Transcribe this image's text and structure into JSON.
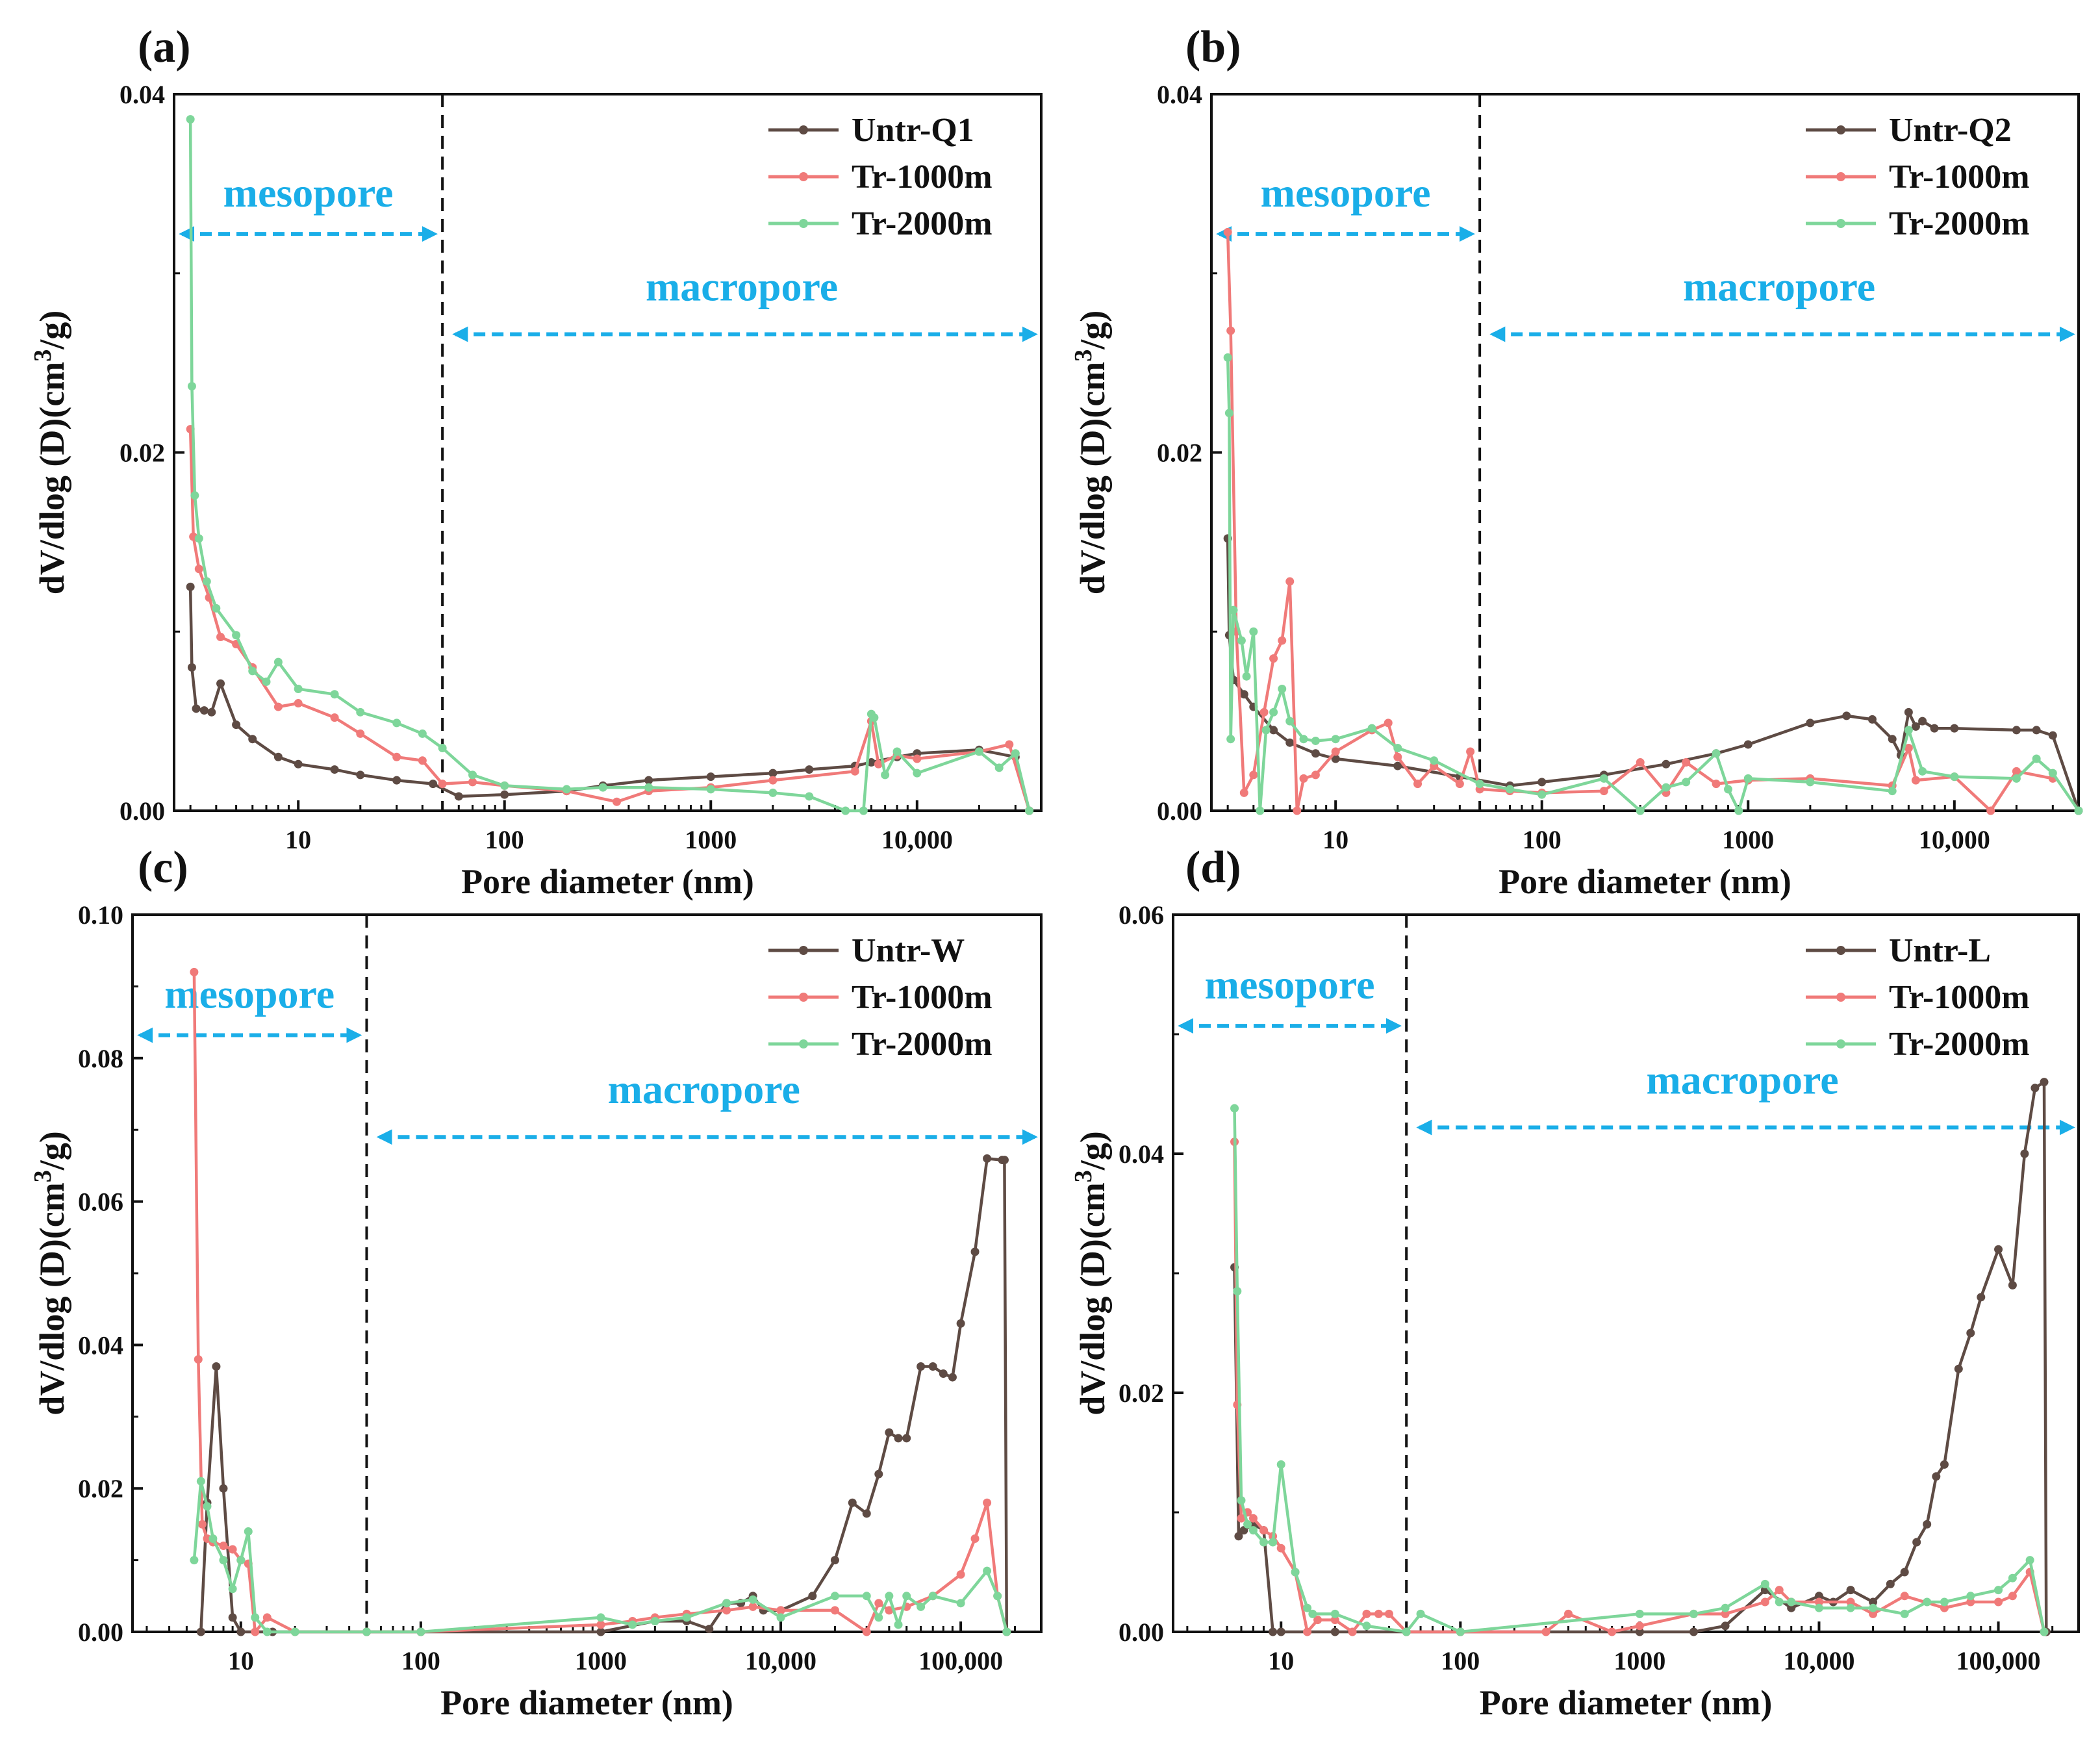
{
  "figure": {
    "colors": {
      "untreated": "#5e4b44",
      "tr1000": "#f07a79",
      "tr2000": "#7ed69a",
      "region": "#1aaee8",
      "axis": "#111111"
    }
  },
  "chart_data": [
    {
      "panel": "(a)",
      "type": "line",
      "xscale": "log",
      "xlim": [
        2.5,
        40000
      ],
      "ylim": [
        0,
        0.04
      ],
      "yticks": [
        "0.00",
        "0.02",
        "0.04"
      ],
      "xticks": [
        "10",
        "100",
        "1000",
        "10,000"
      ],
      "xlabel": "Pore diameter (nm)",
      "ylabel": "dV/dlog (D)(cm3/g)",
      "ylabel_main": "dV/dlog (D)(cm",
      "ylabel_sup": "3",
      "ylabel_tail": "/g)",
      "boundary_nm": 50,
      "region_labels": {
        "mesopore": "mesopore",
        "macropore": "macropore"
      },
      "region_y": {
        "mesopore": 0.0322,
        "macropore": 0.0266
      },
      "legend": [
        "Untr-Q1",
        "Tr-1000m",
        "Tr-2000m"
      ],
      "series": [
        {
          "name": "Untr-Q1",
          "color": "#5e4b44",
          "x": [
            3,
            3.05,
            3.2,
            3.5,
            3.8,
            4.2,
            5,
            6,
            8,
            10,
            15,
            20,
            30,
            45,
            60,
            100,
            200,
            300,
            500,
            1000,
            2000,
            3000,
            5000,
            6000,
            8000,
            10000,
            20000,
            30000,
            35000
          ],
          "y": [
            0.0125,
            0.008,
            0.0057,
            0.0056,
            0.0055,
            0.0071,
            0.0048,
            0.004,
            0.003,
            0.0026,
            0.0023,
            0.002,
            0.0017,
            0.0015,
            0.0008,
            0.0009,
            0.0011,
            0.0014,
            0.0017,
            0.0019,
            0.0021,
            0.0023,
            0.0025,
            0.0027,
            0.003,
            0.0032,
            0.0034,
            0.003,
            0
          ]
        },
        {
          "name": "Tr-1000m",
          "color": "#f07a79",
          "x": [
            3,
            3.1,
            3.3,
            3.7,
            4.2,
            5,
            6,
            8,
            10,
            15,
            20,
            30,
            40,
            50,
            70,
            100,
            200,
            350,
            500,
            1000,
            2000,
            5000,
            6000,
            6500,
            8000,
            10000,
            20000,
            28000,
            35000
          ],
          "y": [
            0.0213,
            0.0153,
            0.0135,
            0.0119,
            0.0097,
            0.0093,
            0.008,
            0.0058,
            0.006,
            0.0052,
            0.0043,
            0.003,
            0.0028,
            0.0015,
            0.0016,
            0.0014,
            0.0011,
            0.0005,
            0.0011,
            0.0013,
            0.0017,
            0.0022,
            0.005,
            0.0026,
            0.0031,
            0.0029,
            0.0033,
            0.0037,
            0
          ]
        },
        {
          "name": "Tr-2000m",
          "color": "#7ed69a",
          "x": [
            3,
            3.05,
            3.15,
            3.3,
            3.6,
            4,
            5,
            6,
            7,
            8,
            10,
            15,
            20,
            30,
            40,
            50,
            70,
            100,
            200,
            300,
            500,
            1000,
            2000,
            3000,
            4500,
            5500,
            6000,
            6200,
            7000,
            8000,
            10000,
            20000,
            25000,
            30000,
            35000
          ],
          "y": [
            0.0386,
            0.0237,
            0.0176,
            0.0152,
            0.0128,
            0.0113,
            0.0098,
            0.0078,
            0.0072,
            0.0083,
            0.0068,
            0.0065,
            0.0055,
            0.0049,
            0.0043,
            0.0035,
            0.002,
            0.0014,
            0.0012,
            0.0013,
            0.0013,
            0.0012,
            0.001,
            0.0008,
            0,
            0,
            0.0054,
            0.0052,
            0.002,
            0.0033,
            0.0021,
            0.0033,
            0.0024,
            0.0032,
            0
          ]
        }
      ]
    },
    {
      "panel": "(b)",
      "type": "line",
      "xscale": "log",
      "xlim": [
        2.5,
        40000
      ],
      "ylim": [
        0,
        0.04
      ],
      "yticks": [
        "0.00",
        "0.02",
        "0.04"
      ],
      "xticks": [
        "10",
        "100",
        "1000",
        "10,000"
      ],
      "xlabel": "Pore diameter (nm)",
      "ylabel": "dV/dlog (D)(cm3/g)",
      "ylabel_main": "dV/dlog (D)(cm",
      "ylabel_sup": "3",
      "ylabel_tail": "/g)",
      "boundary_nm": 50,
      "region_labels": {
        "mesopore": "mesopore",
        "macropore": "macropore"
      },
      "region_y": {
        "mesopore": 0.0322,
        "macropore": 0.0266
      },
      "legend": [
        "Untr-Q2",
        "Tr-1000m",
        "Tr-2000m"
      ],
      "series": [
        {
          "name": "Untr-Q2",
          "color": "#5e4b44",
          "x": [
            3,
            3.05,
            3.2,
            3.6,
            4,
            5,
            6,
            8,
            10,
            20,
            40,
            70,
            100,
            200,
            400,
            700,
            1000,
            2000,
            3000,
            4000,
            5000,
            5500,
            6000,
            6500,
            7000,
            8000,
            10000,
            20000,
            25000,
            30000,
            40000
          ],
          "y": [
            0.0152,
            0.0098,
            0.0073,
            0.0065,
            0.0058,
            0.0045,
            0.0038,
            0.0032,
            0.0029,
            0.0025,
            0.0019,
            0.0014,
            0.0016,
            0.002,
            0.0026,
            0.0032,
            0.0037,
            0.0049,
            0.0053,
            0.0051,
            0.004,
            0.0031,
            0.0055,
            0.0047,
            0.005,
            0.0046,
            0.0046,
            0.0045,
            0.0045,
            0.0042,
            0
          ]
        },
        {
          "name": "Tr-1000m",
          "color": "#f07a79",
          "x": [
            3,
            3.1,
            3.3,
            3.6,
            4,
            4.5,
            5,
            5.5,
            6,
            6.5,
            7,
            8,
            10,
            15,
            18,
            20,
            25,
            30,
            40,
            45,
            50,
            70,
            100,
            200,
            300,
            400,
            500,
            700,
            1000,
            2000,
            5000,
            6000,
            6500,
            10000,
            15000,
            20000,
            30000
          ],
          "y": [
            0.0323,
            0.0268,
            0.01,
            0.001,
            0.002,
            0.0055,
            0.0085,
            0.0095,
            0.0128,
            0,
            0.0018,
            0.002,
            0.0033,
            0.0045,
            0.0049,
            0.003,
            0.0015,
            0.0025,
            0.0015,
            0.0033,
            0.0012,
            0.0011,
            0.001,
            0.0011,
            0.0027,
            0.001,
            0.0027,
            0.0015,
            0.0017,
            0.0018,
            0.0014,
            0.0035,
            0.0017,
            0.0019,
            0,
            0.0022,
            0.0018
          ]
        },
        {
          "name": "Tr-2000m",
          "color": "#7ed69a",
          "x": [
            3,
            3.05,
            3.1,
            3.2,
            3.5,
            3.7,
            4,
            4.3,
            4.6,
            5,
            5.5,
            6,
            7,
            8,
            10,
            15,
            20,
            30,
            50,
            70,
            100,
            200,
            300,
            400,
            500,
            700,
            800,
            900,
            1000,
            2000,
            5000,
            6000,
            7000,
            10000,
            20000,
            25000,
            30000,
            40000
          ],
          "y": [
            0.0253,
            0.0222,
            0.004,
            0.0112,
            0.0095,
            0.0075,
            0.01,
            0,
            0.0045,
            0.0055,
            0.0068,
            0.005,
            0.004,
            0.0039,
            0.004,
            0.0046,
            0.0035,
            0.0028,
            0.0015,
            0.0012,
            0.0009,
            0.0018,
            0,
            0.0013,
            0.0016,
            0.0032,
            0.0012,
            0,
            0.0018,
            0.0016,
            0.0011,
            0.0045,
            0.0022,
            0.0019,
            0.0018,
            0.0029,
            0.0021,
            0
          ]
        }
      ]
    },
    {
      "panel": "(c)",
      "type": "line",
      "xscale": "log",
      "xlim": [
        2.5,
        280000
      ],
      "ylim": [
        0,
        0.1
      ],
      "yticks": [
        "0.00",
        "0.02",
        "0.04",
        "0.06",
        "0.08",
        "0.10"
      ],
      "xticks": [
        "10",
        "100",
        "1000",
        "10,000",
        "100,000"
      ],
      "xlabel": "Pore diameter (nm)",
      "ylabel": "dV/dlog (D)(cm3/g)",
      "ylabel_main": "dV/dlog (D)(cm",
      "ylabel_sup": "3",
      "ylabel_tail": "/g)",
      "boundary_nm": 50,
      "region_labels": {
        "mesopore": "mesopore",
        "macropore": "macropore"
      },
      "region_y": {
        "mesopore": 0.0832,
        "macropore": 0.069
      },
      "legend": [
        "Untr-W",
        "Tr-1000m",
        "Tr-2000m"
      ],
      "series": [
        {
          "name": "Untr-W",
          "color": "#5e4b44",
          "x": [
            6,
            6.5,
            7.3,
            8,
            9,
            10,
            15,
            50,
            100,
            1000,
            2000,
            3000,
            4000,
            5000,
            6000,
            7000,
            8000,
            10000,
            15000,
            20000,
            25000,
            30000,
            35000,
            40000,
            45000,
            50000,
            60000,
            70000,
            80000,
            90000,
            100000,
            120000,
            140000,
            170000,
            175000,
            180000
          ],
          "y": [
            0,
            0.018,
            0.037,
            0.02,
            0.002,
            0,
            0,
            0,
            0,
            0,
            0.0015,
            0.0015,
            0.0004,
            0.004,
            0.004,
            0.005,
            0.003,
            0.003,
            0.005,
            0.01,
            0.018,
            0.0165,
            0.022,
            0.0278,
            0.027,
            0.027,
            0.037,
            0.037,
            0.036,
            0.0355,
            0.043,
            0.053,
            0.066,
            0.0658,
            0.0658,
            0
          ]
        },
        {
          "name": "Tr-1000m",
          "color": "#f07a79",
          "x": [
            5.5,
            5.8,
            6.1,
            6.5,
            7,
            8,
            9,
            10,
            11,
            12,
            14,
            20,
            50,
            100,
            1000,
            1500,
            2000,
            3000,
            5000,
            7000,
            10000,
            20000,
            30000,
            35000,
            40000,
            50000,
            70000,
            100000,
            120000,
            140000,
            160000,
            180000
          ],
          "y": [
            0.092,
            0.038,
            0.015,
            0.013,
            0.0125,
            0.012,
            0.0115,
            0.01,
            0.0095,
            0,
            0.002,
            0,
            0,
            0,
            0.001,
            0.0015,
            0.002,
            0.0025,
            0.003,
            0.0035,
            0.003,
            0.003,
            0,
            0.004,
            0.003,
            0.0035,
            0.005,
            0.008,
            0.013,
            0.018,
            0.005,
            0
          ]
        },
        {
          "name": "Tr-2000m",
          "color": "#7ed69a",
          "x": [
            5.5,
            6,
            6.5,
            7,
            8,
            9,
            10,
            11,
            12,
            14,
            20,
            50,
            100,
            1000,
            1500,
            2000,
            3000,
            5000,
            7000,
            10000,
            20000,
            30000,
            35000,
            40000,
            45000,
            50000,
            60000,
            70000,
            100000,
            140000,
            160000,
            180000
          ],
          "y": [
            0.01,
            0.021,
            0.0175,
            0.013,
            0.01,
            0.006,
            0.01,
            0.014,
            0.002,
            0,
            0,
            0,
            0,
            0.002,
            0.001,
            0.0015,
            0.002,
            0.004,
            0.0045,
            0.002,
            0.005,
            0.005,
            0.002,
            0.005,
            0.001,
            0.005,
            0.0035,
            0.005,
            0.004,
            0.0085,
            0.005,
            0
          ]
        }
      ]
    },
    {
      "panel": "(d)",
      "type": "line",
      "xscale": "log",
      "xlim": [
        2.5,
        280000
      ],
      "ylim": [
        0,
        0.06
      ],
      "yticks": [
        "0.00",
        "0.02",
        "0.04",
        "0.06"
      ],
      "xticks": [
        "10",
        "100",
        "1000",
        "10,000",
        "100,000"
      ],
      "xlabel": "Pore diameter (nm)",
      "ylabel": "dV/dlog (D)(cm3/g)",
      "ylabel_main": "dV/dlog (D)(cm",
      "ylabel_sup": "3",
      "ylabel_tail": "/g)",
      "boundary_nm": 50,
      "region_labels": {
        "mesopore": "mesopore",
        "macropore": "macropore"
      },
      "region_y": {
        "mesopore": 0.0507,
        "macropore": 0.0422
      },
      "legend": [
        "Untr-L",
        "Tr-1000m",
        "Tr-2000m"
      ],
      "series": [
        {
          "name": "Untr-L",
          "color": "#5e4b44",
          "x": [
            5.5,
            5.8,
            6.2,
            7,
            8,
            9,
            10,
            20,
            50,
            100,
            1000,
            2000,
            3000,
            5000,
            7000,
            10000,
            12000,
            15000,
            20000,
            25000,
            30000,
            35000,
            40000,
            45000,
            50000,
            60000,
            70000,
            80000,
            100000,
            120000,
            140000,
            160000,
            180000,
            185000
          ],
          "y": [
            0.0305,
            0.008,
            0.0085,
            0.009,
            0.0085,
            0,
            0,
            0,
            0,
            0,
            0,
            0,
            0.0005,
            0.0035,
            0.002,
            0.003,
            0.0025,
            0.0035,
            0.0025,
            0.004,
            0.005,
            0.0075,
            0.009,
            0.013,
            0.014,
            0.022,
            0.025,
            0.028,
            0.032,
            0.029,
            0.04,
            0.0455,
            0.046,
            0
          ]
        },
        {
          "name": "Tr-1000m",
          "color": "#f07a79",
          "x": [
            5.5,
            5.7,
            6,
            6.5,
            7,
            8,
            9,
            10,
            12,
            14,
            16,
            20,
            25,
            30,
            35,
            40,
            50,
            100,
            300,
            400,
            700,
            1000,
            2000,
            3000,
            5000,
            6000,
            7000,
            10000,
            15000,
            20000,
            30000,
            50000,
            70000,
            100000,
            120000,
            150000,
            180000
          ],
          "y": [
            0.041,
            0.019,
            0.0095,
            0.01,
            0.0095,
            0.0085,
            0.008,
            0.007,
            0.005,
            0,
            0.001,
            0.001,
            0,
            0.0015,
            0.0015,
            0.0015,
            0,
            0,
            0,
            0.0015,
            0,
            0.0005,
            0.0015,
            0.0015,
            0.0025,
            0.0035,
            0.0025,
            0.0025,
            0.0025,
            0.0015,
            0.003,
            0.002,
            0.0025,
            0.0025,
            0.003,
            0.005,
            0
          ]
        },
        {
          "name": "Tr-2000m",
          "color": "#7ed69a",
          "x": [
            5.5,
            5.7,
            6,
            6.5,
            7,
            8,
            9,
            10,
            12,
            14,
            15,
            20,
            30,
            50,
            60,
            100,
            1000,
            2000,
            3000,
            5000,
            6000,
            7000,
            10000,
            15000,
            20000,
            30000,
            40000,
            50000,
            70000,
            100000,
            120000,
            150000,
            180000
          ],
          "y": [
            0.0438,
            0.0285,
            0.011,
            0.009,
            0.0085,
            0.0075,
            0.0075,
            0.014,
            0.005,
            0.002,
            0.0015,
            0.0015,
            0.0005,
            0,
            0.0015,
            0,
            0.0015,
            0.0015,
            0.002,
            0.004,
            0.0025,
            0.0025,
            0.002,
            0.002,
            0.002,
            0.0015,
            0.0025,
            0.0025,
            0.003,
            0.0035,
            0.0045,
            0.006,
            0
          ]
        }
      ]
    }
  ]
}
